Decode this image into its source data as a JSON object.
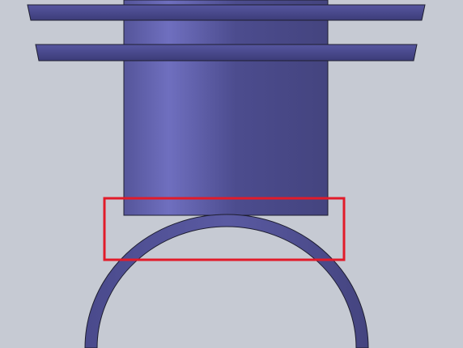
{
  "viewport": {
    "background": "#c6cad3"
  },
  "model": {
    "part_color": "#4a4a8c",
    "part_highlight": "#6f6fbf",
    "edge_color": "#1e1e30",
    "parts": [
      "flange-upper",
      "flange-lower",
      "cylinder-body",
      "ring"
    ]
  },
  "selection": {
    "color": "#e11b2a",
    "description": ""
  }
}
